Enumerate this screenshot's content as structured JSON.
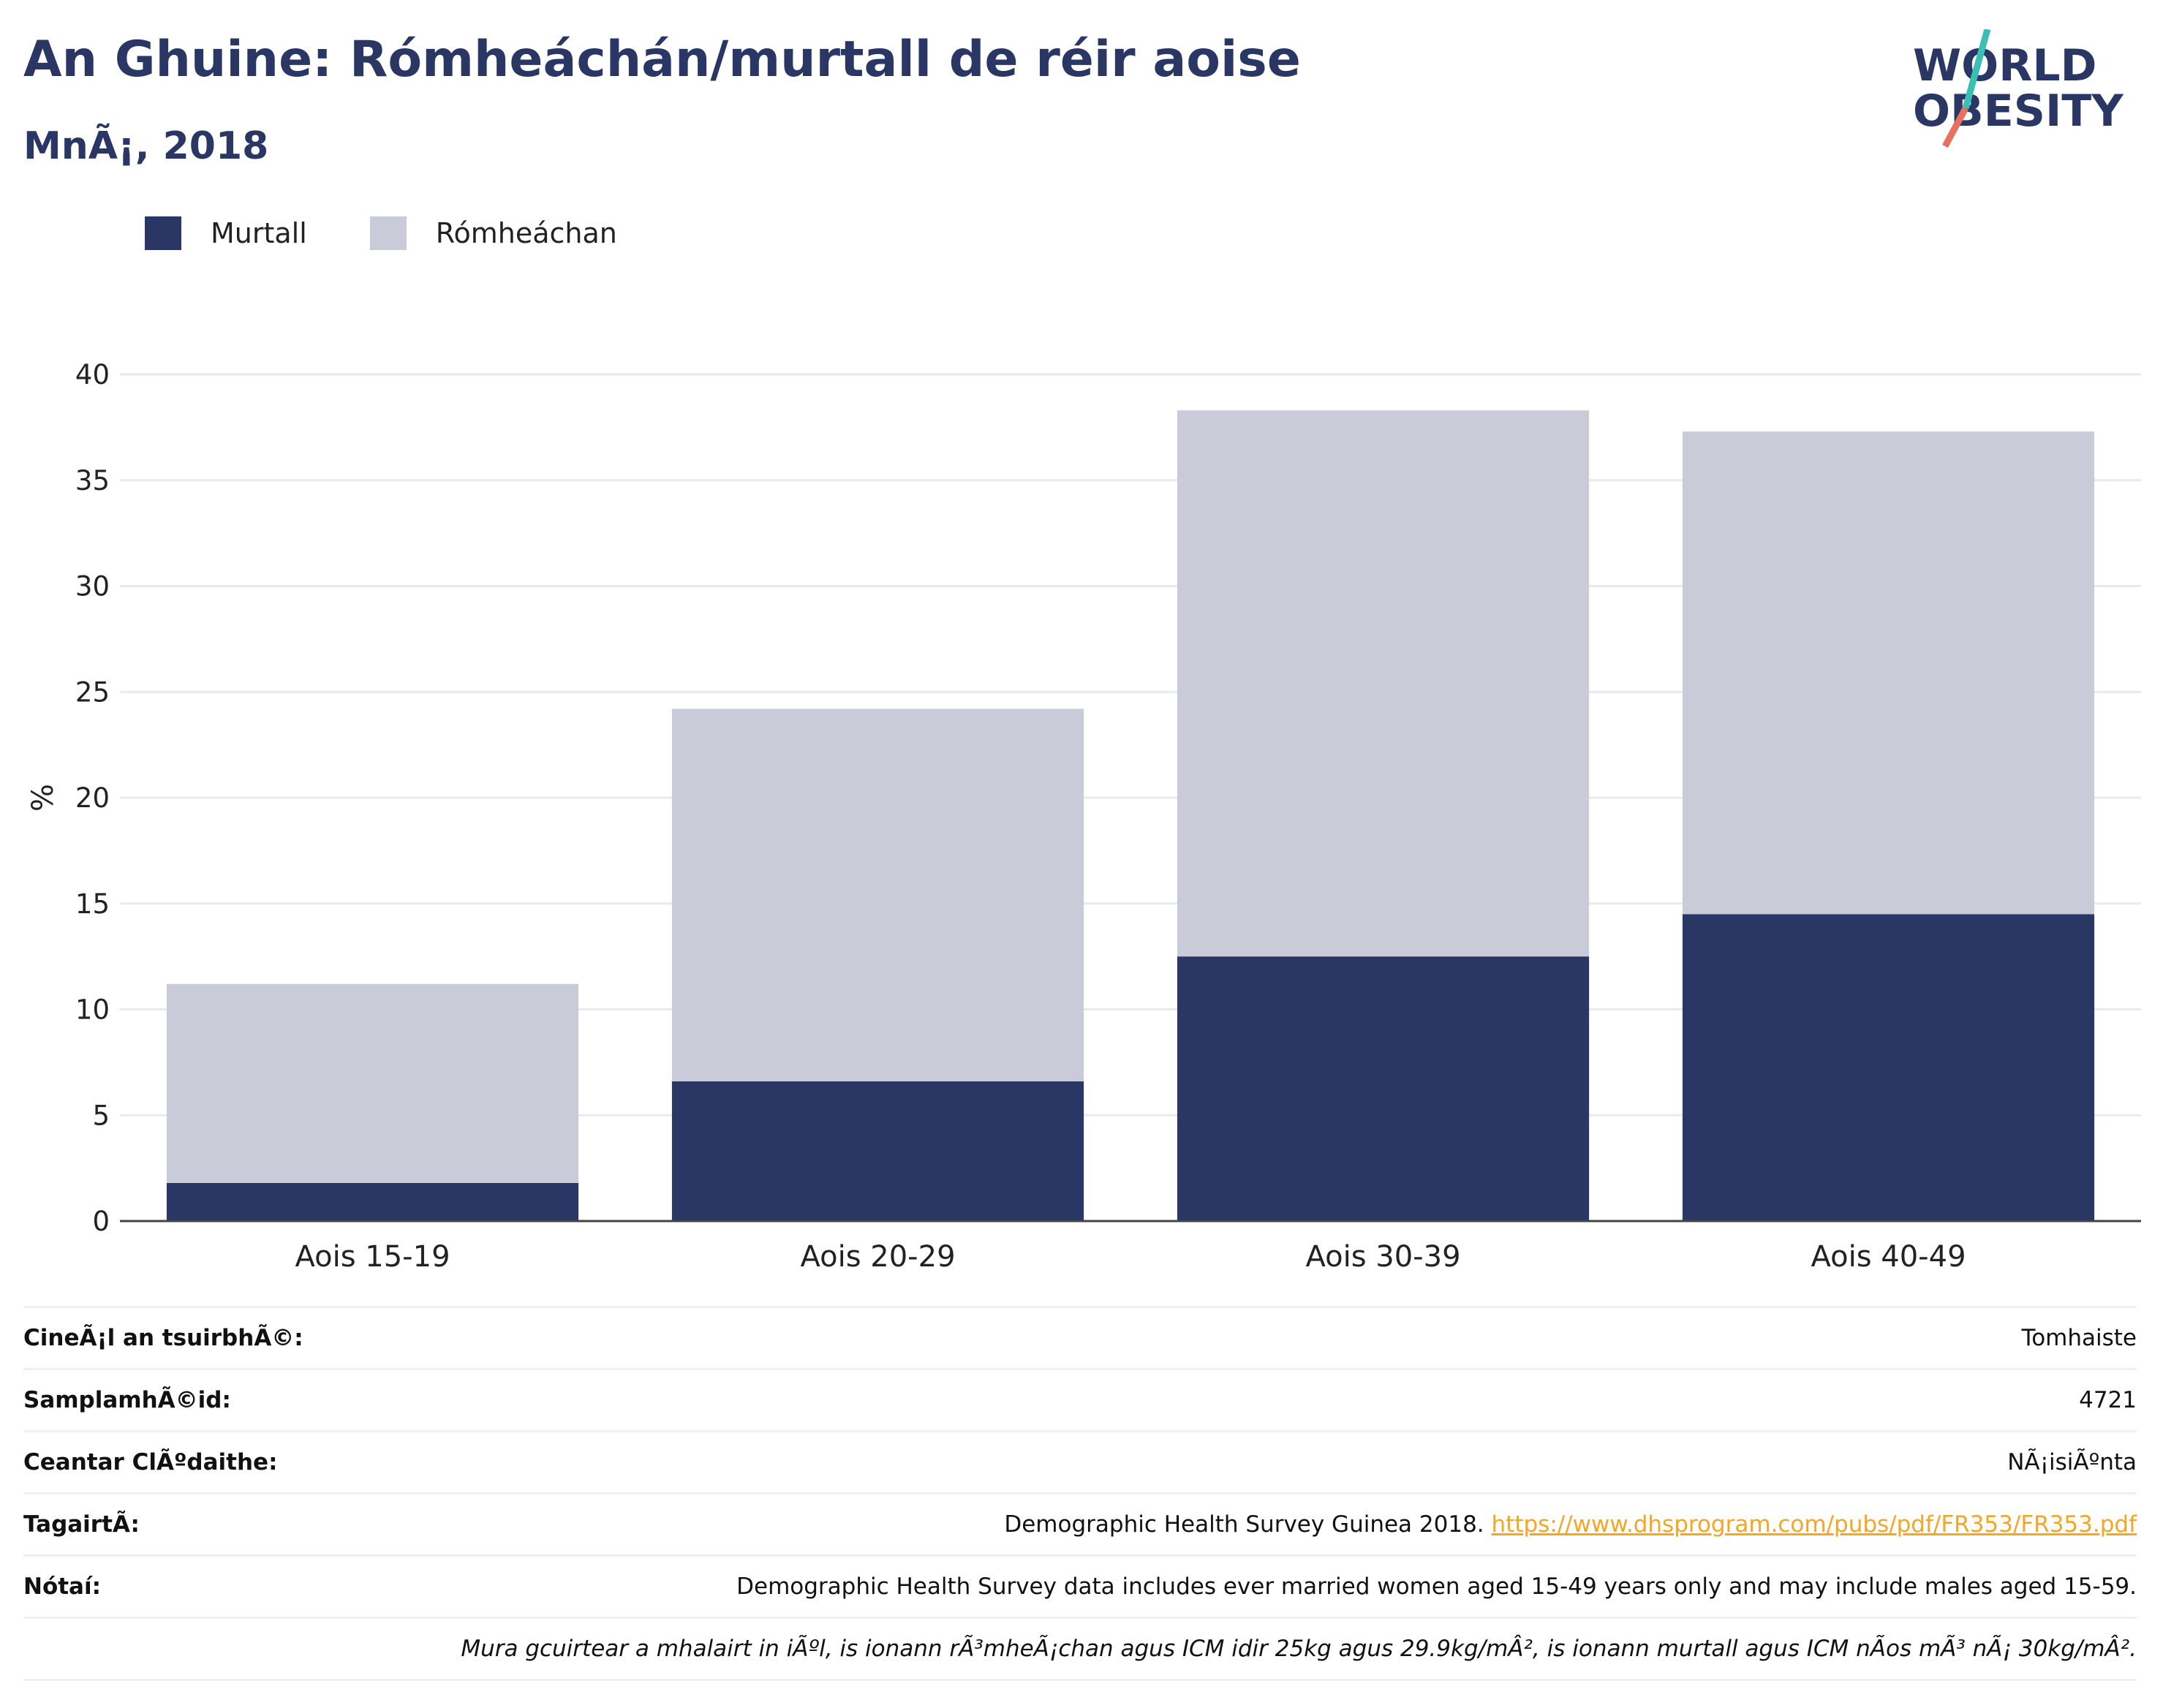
{
  "header": {
    "title": "An Ghuine: Rómheáchán/murtall de réir aoise",
    "subtitle": "MnÃ¡, 2018"
  },
  "logo": {
    "line1": "WORLD",
    "line2": "OBESITY",
    "colors": {
      "text": "#2a3764",
      "slash_top": "#3bbfb5",
      "slash_bottom": "#e8705f"
    }
  },
  "colors": {
    "obese": "#2a3764",
    "overweight": "#c9ccd8",
    "grid": "#e8eaf0",
    "axis": "#444444",
    "link": "#f5a623"
  },
  "chart_data": {
    "type": "bar",
    "stacked": true,
    "categories": [
      "Aois 15-19",
      "Aois 20-29",
      "Aois 30-39",
      "Aois 40-49"
    ],
    "series": [
      {
        "name": "Murtall",
        "values": [
          1.8,
          6.6,
          12.5,
          14.5
        ]
      },
      {
        "name": "Rómheáchan",
        "values": [
          9.4,
          17.6,
          25.8,
          22.8
        ]
      }
    ],
    "ylabel": "%",
    "ylim": [
      0,
      40
    ],
    "yticks": [
      0,
      5,
      10,
      15,
      20,
      25,
      30,
      35,
      40
    ],
    "grid": true,
    "legend_position": "top-left"
  },
  "info": {
    "rows": [
      {
        "label": "CineÃ¡l an tsuirbhÃ©:",
        "value": "Tomhaiste"
      },
      {
        "label": "SamplamhÃ©id:",
        "value": "4721"
      },
      {
        "label": "Ceantar ClÃºdaithe:",
        "value": "NÃ¡isiÃºnta"
      },
      {
        "label": "TagairtÃ:",
        "value": "Demographic Health Survey Guinea 2018.",
        "link": "https://www.dhsprogram.com/pubs/pdf/FR353/FR353.pdf"
      },
      {
        "label": "Nótaí:",
        "value": "Demographic Health Survey data includes ever married women aged 15-49 years only and may include males aged 15-59."
      }
    ],
    "footnote": "Mura gcuirtear a mhalairt in iÃºl, is ionann rÃ³mheÃ¡chan agus ICM idir 25kg agus 29.9kg/mÂ², is ionann murtall agus ICM nÃ­os mÃ³ nÃ¡ 30kg/mÂ²."
  }
}
